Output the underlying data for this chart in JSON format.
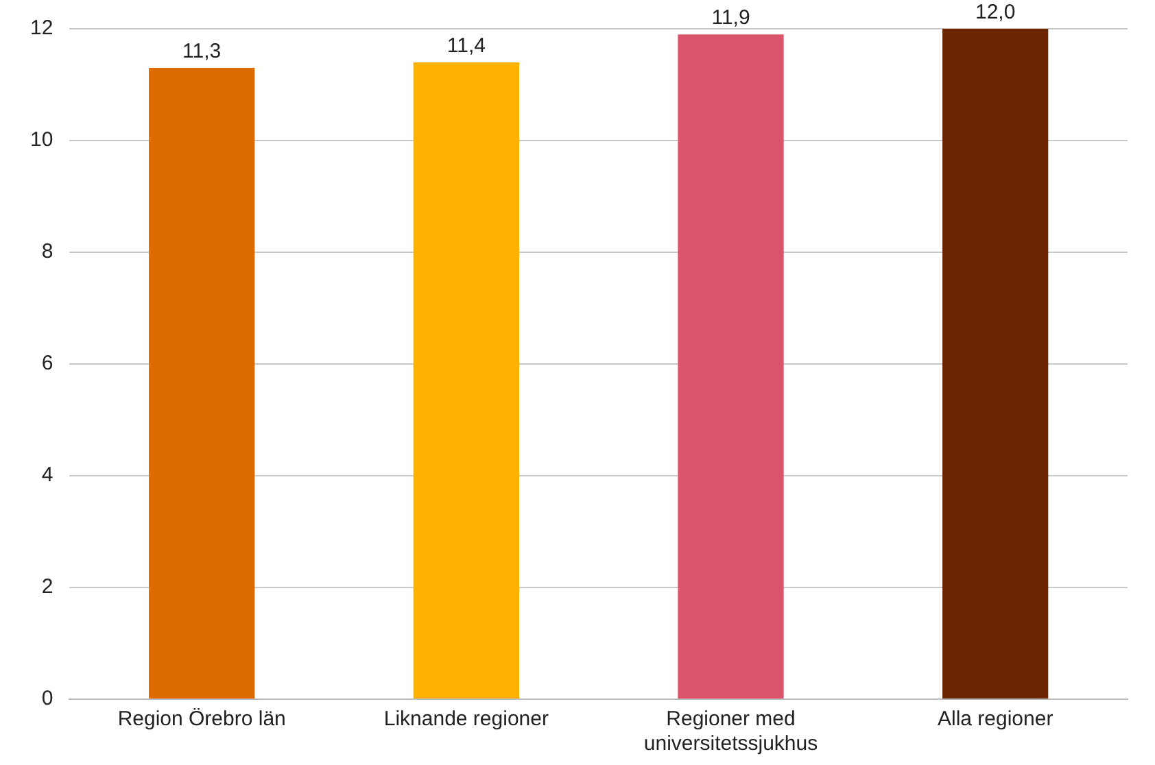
{
  "chart_data": {
    "type": "bar",
    "categories": [
      "Region Örebro län",
      "Liknande regioner",
      "Regioner med universitetssjukhus",
      "Alla regioner"
    ],
    "values": [
      11.3,
      11.4,
      11.9,
      12.0
    ],
    "colors": [
      "#dd6b00",
      "#ffb300",
      "#dc546b",
      "#6b2500"
    ],
    "value_labels": [
      "11,3",
      "11,4",
      "11,9",
      "12,0"
    ],
    "ylim": [
      0,
      12
    ],
    "yticks": [
      0,
      2,
      4,
      6,
      8,
      10,
      12
    ],
    "grid": "y",
    "legend": false
  }
}
